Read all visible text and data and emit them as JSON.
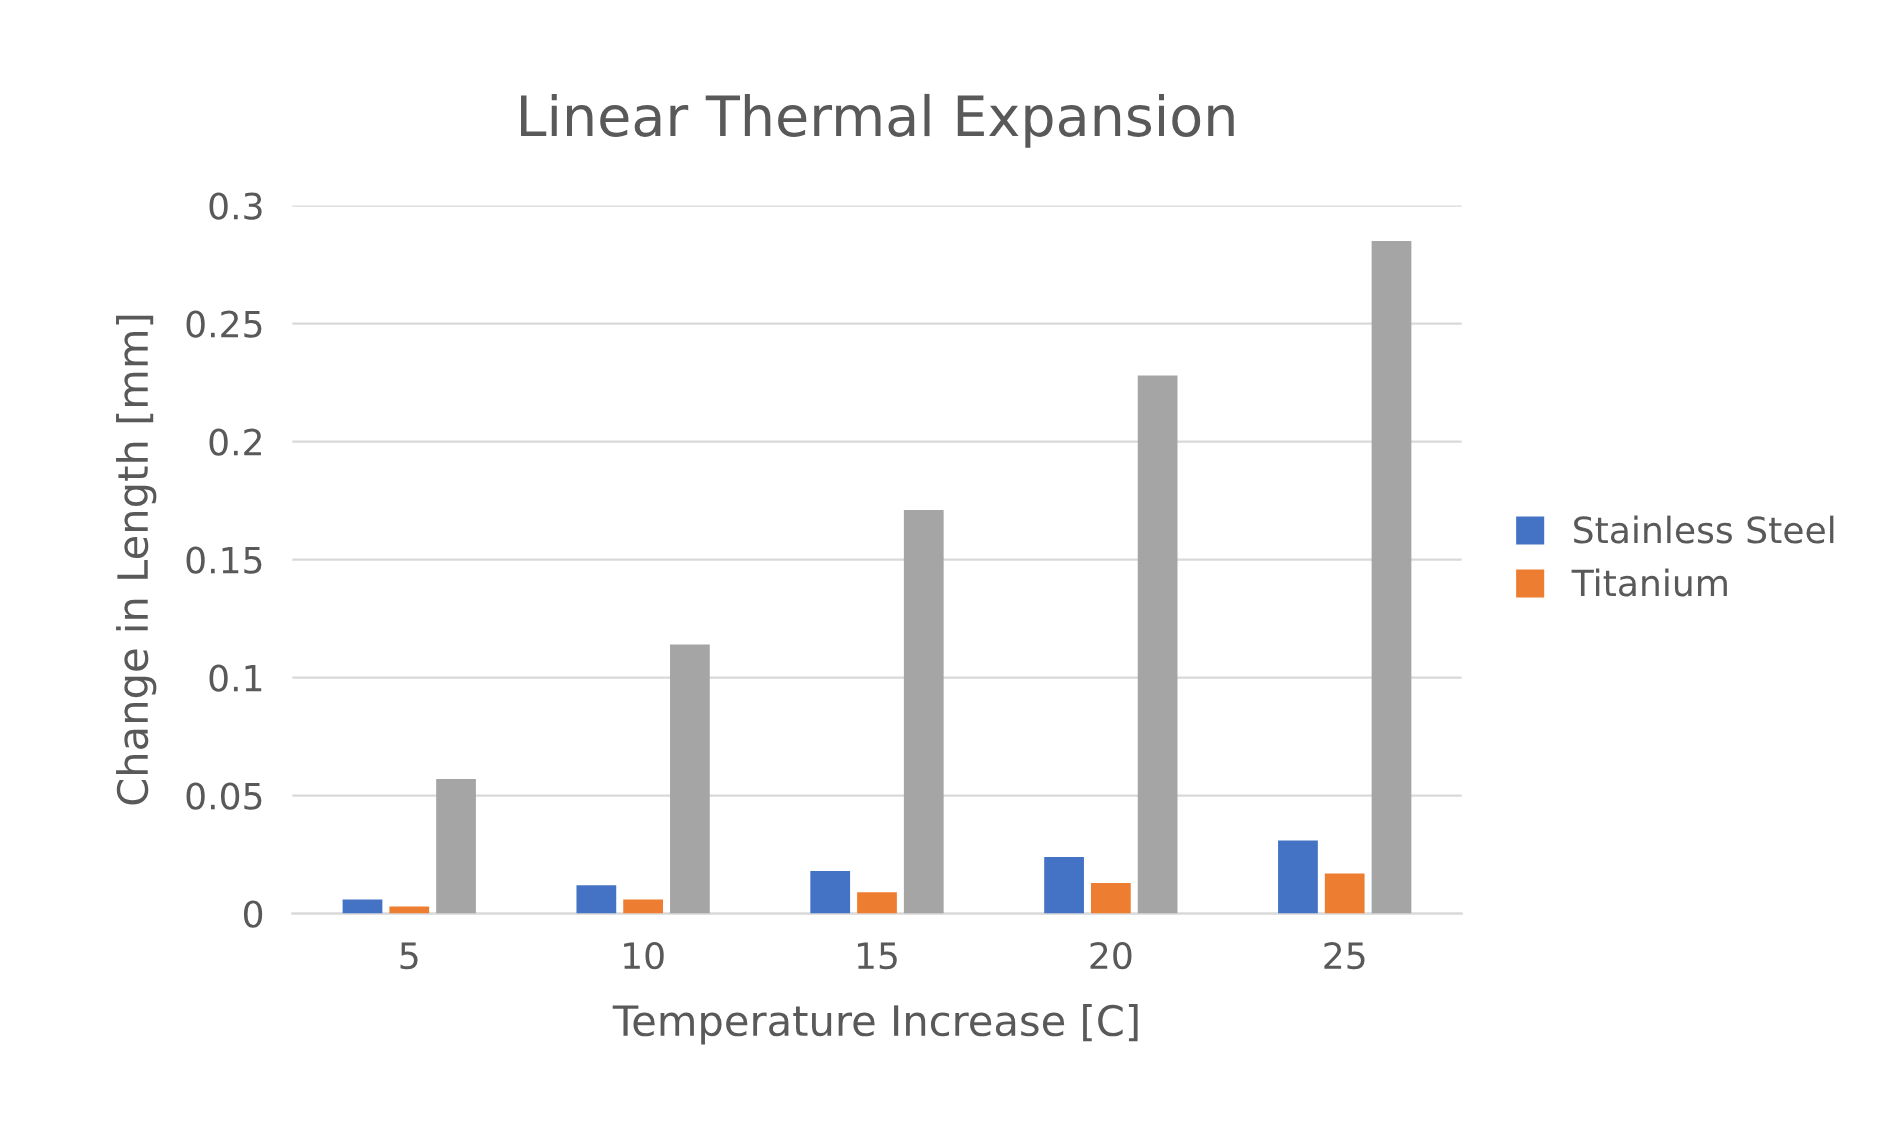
{
  "chart_data": {
    "type": "bar",
    "title": "Linear Thermal Expansion",
    "xlabel": "Temperature Increase [C]",
    "ylabel": "Change in Length [mm]",
    "categories": [
      "5",
      "10",
      "15",
      "20",
      "25"
    ],
    "series": [
      {
        "name": "Stainless Steel",
        "color": "#4472c4",
        "values": [
          0.006,
          0.012,
          0.018,
          0.024,
          0.031
        ]
      },
      {
        "name": "Titanium",
        "color": "#ed7d31",
        "values": [
          0.003,
          0.006,
          0.009,
          0.013,
          0.017
        ]
      },
      {
        "color": "#a5a5a5",
        "values": [
          0.057,
          0.114,
          0.171,
          0.228,
          0.285
        ]
      }
    ],
    "ylim": [
      0,
      0.3
    ],
    "yticks": [
      {
        "value": 0,
        "label": "0"
      },
      0.05,
      0.1,
      0.15,
      0.2,
      0.25,
      0.3
    ],
    "grid": "y",
    "legend": "right"
  }
}
